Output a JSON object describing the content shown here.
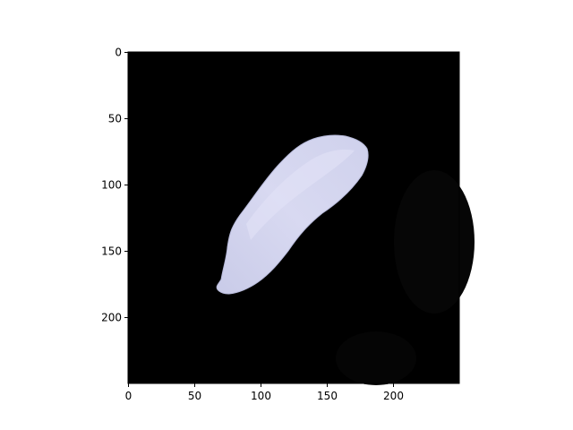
{
  "figure": {
    "image_description_layer": "micrograph",
    "colors": {
      "background": "#000000",
      "grain_fill": "#d4d6ef",
      "grain_highlight": "#e6e7f8",
      "grain_edge": "#b9bcdc",
      "figure_bg": "#ffffff"
    }
  },
  "axes": {
    "xlim": [
      0,
      250
    ],
    "ylim": [
      250,
      0
    ],
    "x_ticks": [
      "0",
      "50",
      "100",
      "150",
      "200"
    ],
    "y_ticks": [
      "0",
      "50",
      "100",
      "150",
      "200"
    ],
    "x_tick_values": [
      0,
      50,
      100,
      150,
      200
    ],
    "y_tick_values": [
      0,
      50,
      100,
      150,
      200
    ]
  }
}
